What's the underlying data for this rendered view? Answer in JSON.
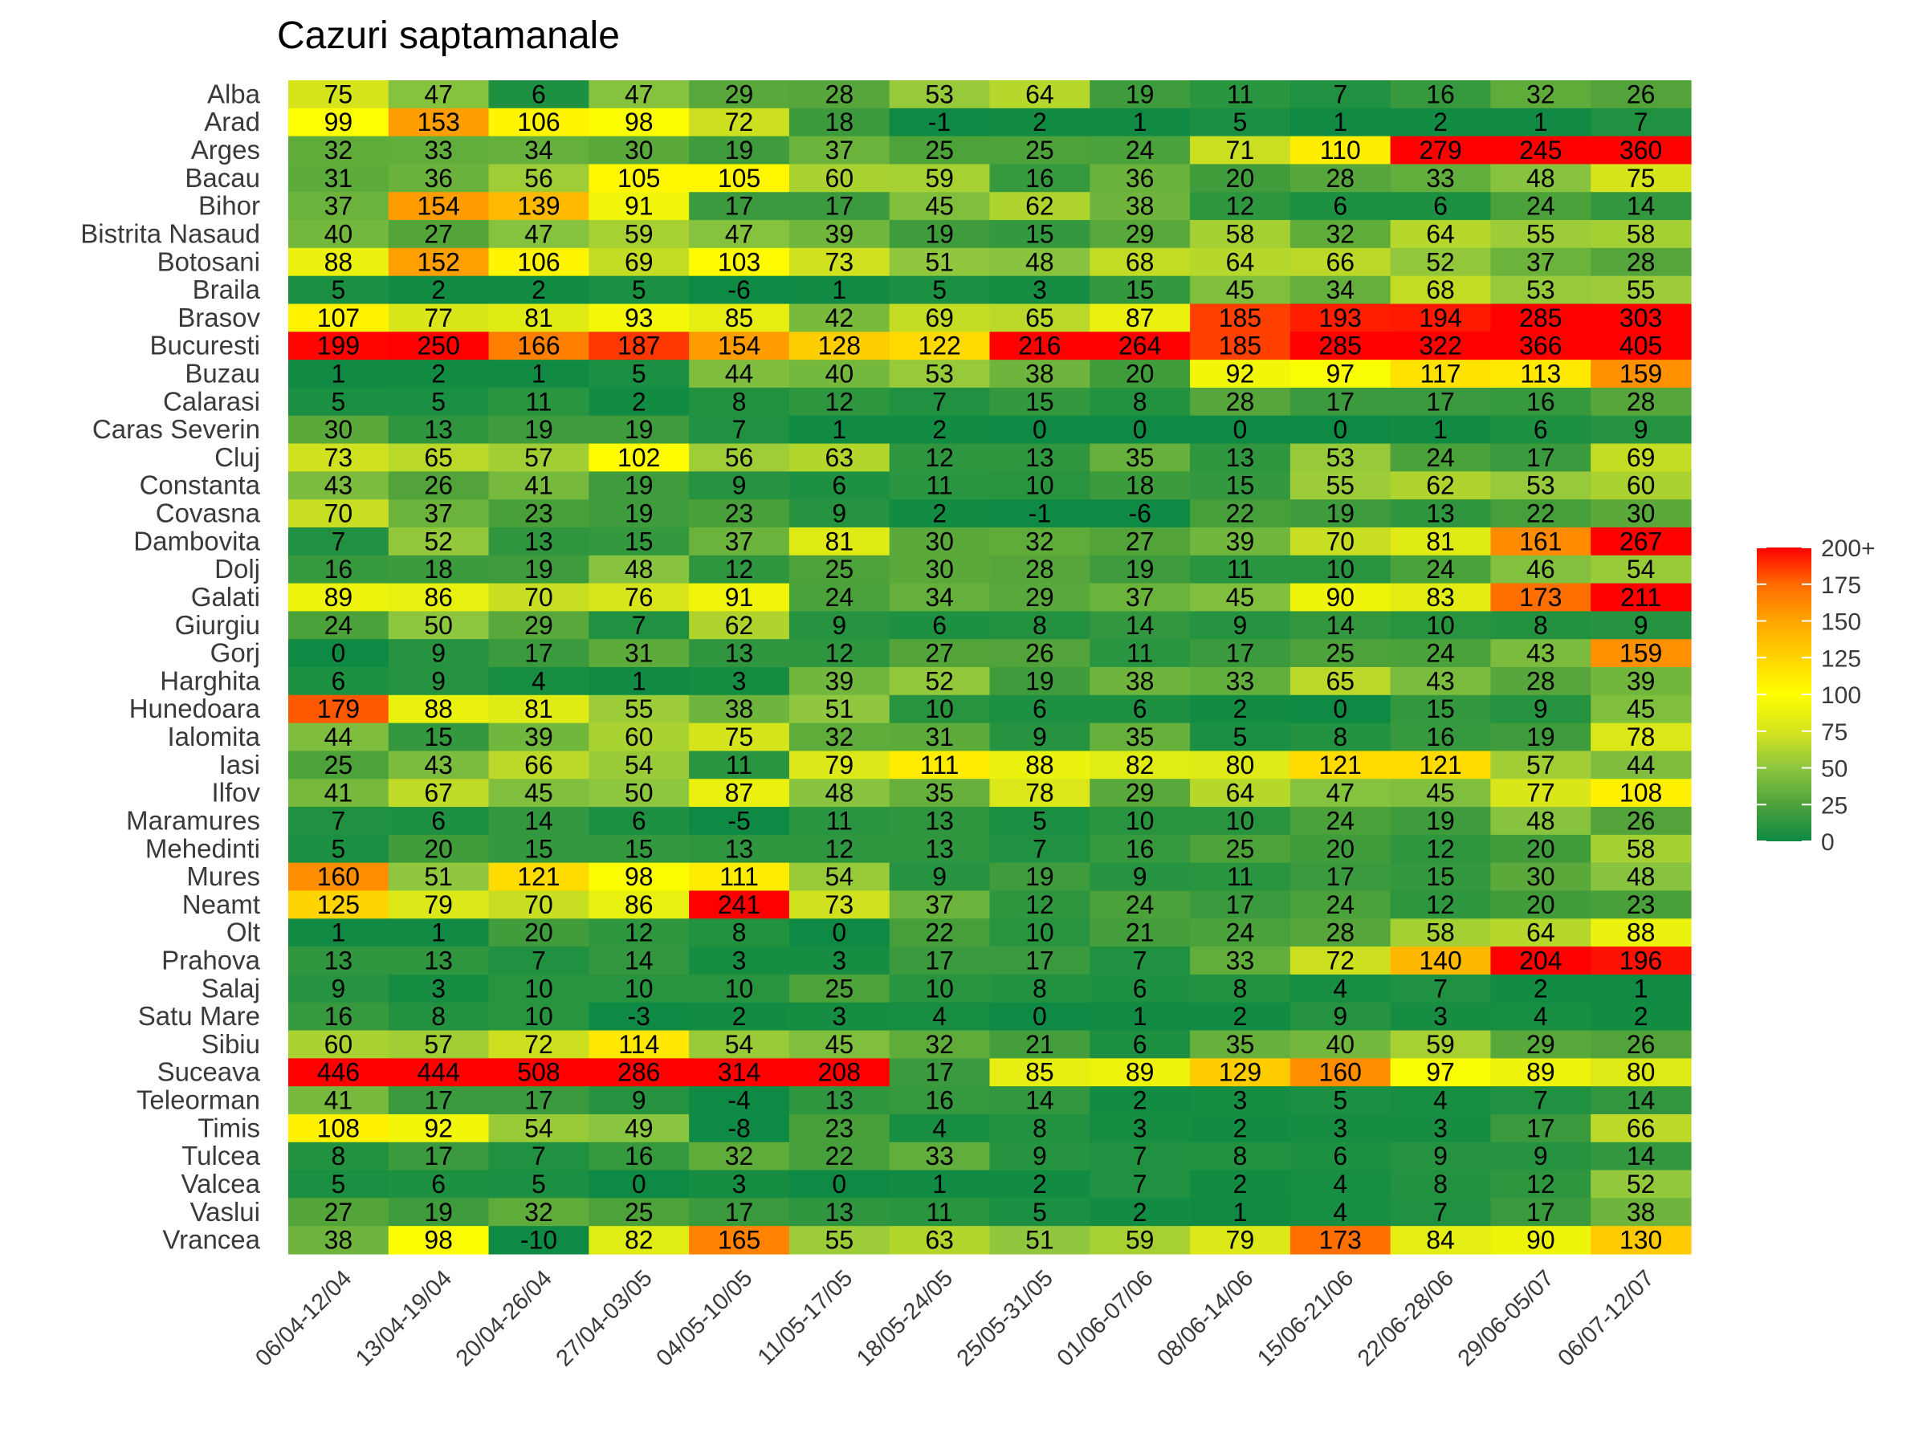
{
  "chart_data": {
    "type": "heatmap",
    "title": "Cazuri saptamanale",
    "xlabel": "",
    "ylabel": "",
    "columns": [
      "06/04-12/04",
      "13/04-19/04",
      "20/04-26/04",
      "27/04-03/05",
      "04/05-10/05",
      "11/05-17/05",
      "18/05-24/05",
      "25/05-31/05",
      "01/06-07/06",
      "08/06-14/06",
      "15/06-21/06",
      "22/06-28/06",
      "29/06-05/07",
      "06/07-12/07"
    ],
    "rows": [
      "Alba",
      "Arad",
      "Arges",
      "Bacau",
      "Bihor",
      "Bistrita Nasaud",
      "Botosani",
      "Braila",
      "Brasov",
      "Bucuresti",
      "Buzau",
      "Calarasi",
      "Caras Severin",
      "Cluj",
      "Constanta",
      "Covasna",
      "Dambovita",
      "Dolj",
      "Galati",
      "Giurgiu",
      "Gorj",
      "Harghita",
      "Hunedoara",
      "Ialomita",
      "Iasi",
      "Ilfov",
      "Maramures",
      "Mehedinti",
      "Mures",
      "Neamt",
      "Olt",
      "Prahova",
      "Salaj",
      "Satu Mare",
      "Sibiu",
      "Suceava",
      "Teleorman",
      "Timis",
      "Tulcea",
      "Valcea",
      "Vaslui",
      "Vrancea"
    ],
    "values": [
      [
        75,
        47,
        6,
        47,
        29,
        28,
        53,
        64,
        19,
        11,
        7,
        16,
        32,
        26
      ],
      [
        99,
        153,
        106,
        98,
        72,
        18,
        -1,
        2,
        1,
        5,
        1,
        2,
        1,
        7
      ],
      [
        32,
        33,
        34,
        30,
        19,
        37,
        25,
        25,
        24,
        71,
        110,
        279,
        245,
        360
      ],
      [
        31,
        36,
        56,
        105,
        105,
        60,
        59,
        16,
        36,
        20,
        28,
        33,
        48,
        75
      ],
      [
        37,
        154,
        139,
        91,
        17,
        17,
        45,
        62,
        38,
        12,
        6,
        6,
        24,
        14
      ],
      [
        40,
        27,
        47,
        59,
        47,
        39,
        19,
        15,
        29,
        58,
        32,
        64,
        55,
        58
      ],
      [
        88,
        152,
        106,
        69,
        103,
        73,
        51,
        48,
        68,
        64,
        66,
        52,
        37,
        28
      ],
      [
        5,
        2,
        2,
        5,
        -6,
        1,
        5,
        3,
        15,
        45,
        34,
        68,
        53,
        55
      ],
      [
        107,
        77,
        81,
        93,
        85,
        42,
        69,
        65,
        87,
        185,
        193,
        194,
        285,
        303
      ],
      [
        199,
        250,
        166,
        187,
        154,
        128,
        122,
        216,
        264,
        185,
        285,
        322,
        366,
        405
      ],
      [
        1,
        2,
        1,
        5,
        44,
        40,
        53,
        38,
        20,
        92,
        97,
        117,
        113,
        159
      ],
      [
        5,
        5,
        11,
        2,
        8,
        12,
        7,
        15,
        8,
        28,
        17,
        17,
        16,
        28
      ],
      [
        30,
        13,
        19,
        19,
        7,
        1,
        2,
        0,
        0,
        0,
        0,
        1,
        6,
        9
      ],
      [
        73,
        65,
        57,
        102,
        56,
        63,
        12,
        13,
        35,
        13,
        53,
        24,
        17,
        69
      ],
      [
        43,
        26,
        41,
        19,
        9,
        6,
        11,
        10,
        18,
        15,
        55,
        62,
        53,
        60
      ],
      [
        70,
        37,
        23,
        19,
        23,
        9,
        2,
        -1,
        -6,
        22,
        19,
        13,
        22,
        30
      ],
      [
        7,
        52,
        13,
        15,
        37,
        81,
        30,
        32,
        27,
        39,
        70,
        81,
        161,
        267
      ],
      [
        16,
        18,
        19,
        48,
        12,
        25,
        30,
        28,
        19,
        11,
        10,
        24,
        46,
        54
      ],
      [
        89,
        86,
        70,
        76,
        91,
        24,
        34,
        29,
        37,
        45,
        90,
        83,
        173,
        211
      ],
      [
        24,
        50,
        29,
        7,
        62,
        9,
        6,
        8,
        14,
        9,
        14,
        10,
        8,
        9
      ],
      [
        0,
        9,
        17,
        31,
        13,
        12,
        27,
        26,
        11,
        17,
        25,
        24,
        43,
        159
      ],
      [
        6,
        9,
        4,
        1,
        3,
        39,
        52,
        19,
        38,
        33,
        65,
        43,
        28,
        39
      ],
      [
        179,
        88,
        81,
        55,
        38,
        51,
        10,
        6,
        6,
        2,
        0,
        15,
        9,
        45
      ],
      [
        44,
        15,
        39,
        60,
        75,
        32,
        31,
        9,
        35,
        5,
        8,
        16,
        19,
        78
      ],
      [
        25,
        43,
        66,
        54,
        11,
        79,
        111,
        88,
        82,
        80,
        121,
        121,
        57,
        44
      ],
      [
        41,
        67,
        45,
        50,
        87,
        48,
        35,
        78,
        29,
        64,
        47,
        45,
        77,
        108
      ],
      [
        7,
        6,
        14,
        6,
        -5,
        11,
        13,
        5,
        10,
        10,
        24,
        19,
        48,
        26
      ],
      [
        5,
        20,
        15,
        15,
        13,
        12,
        13,
        7,
        16,
        25,
        20,
        12,
        20,
        58
      ],
      [
        160,
        51,
        121,
        98,
        111,
        54,
        9,
        19,
        9,
        11,
        17,
        15,
        30,
        48
      ],
      [
        125,
        79,
        70,
        86,
        241,
        73,
        37,
        12,
        24,
        17,
        24,
        12,
        20,
        23
      ],
      [
        1,
        1,
        20,
        12,
        8,
        0,
        22,
        10,
        21,
        24,
        28,
        58,
        64,
        88
      ],
      [
        13,
        13,
        7,
        14,
        3,
        3,
        17,
        17,
        7,
        33,
        72,
        140,
        204,
        196
      ],
      [
        9,
        3,
        10,
        10,
        10,
        25,
        10,
        8,
        6,
        8,
        4,
        7,
        2,
        1
      ],
      [
        16,
        8,
        10,
        -3,
        2,
        3,
        4,
        0,
        1,
        2,
        9,
        3,
        4,
        2
      ],
      [
        60,
        57,
        72,
        114,
        54,
        45,
        32,
        21,
        6,
        35,
        40,
        59,
        29,
        26
      ],
      [
        446,
        444,
        508,
        286,
        314,
        208,
        17,
        85,
        89,
        129,
        160,
        97,
        89,
        80
      ],
      [
        41,
        17,
        17,
        9,
        -4,
        13,
        16,
        14,
        2,
        3,
        5,
        4,
        7,
        14
      ],
      [
        108,
        92,
        54,
        49,
        -8,
        23,
        4,
        8,
        3,
        2,
        3,
        3,
        17,
        66
      ],
      [
        8,
        17,
        7,
        16,
        32,
        22,
        33,
        9,
        7,
        8,
        6,
        9,
        9,
        14
      ],
      [
        5,
        6,
        5,
        0,
        3,
        0,
        1,
        2,
        7,
        2,
        4,
        8,
        12,
        52
      ],
      [
        27,
        19,
        32,
        25,
        17,
        13,
        11,
        5,
        2,
        1,
        4,
        7,
        17,
        38
      ],
      [
        38,
        98,
        -10,
        82,
        165,
        55,
        63,
        51,
        59,
        79,
        173,
        84,
        90,
        130
      ]
    ],
    "color_scale": {
      "min": 0,
      "max": 200,
      "stops": [
        {
          "value": 0,
          "color": "#0e8a44"
        },
        {
          "value": 25,
          "color": "#4ea23a"
        },
        {
          "value": 50,
          "color": "#8dc63f"
        },
        {
          "value": 75,
          "color": "#d6e41c"
        },
        {
          "value": 100,
          "color": "#ffff00"
        },
        {
          "value": 125,
          "color": "#ffd400"
        },
        {
          "value": 150,
          "color": "#ffa500"
        },
        {
          "value": 175,
          "color": "#ff6a00"
        },
        {
          "value": 200,
          "color": "#ff0000"
        }
      ]
    },
    "legend": {
      "position": "right",
      "ticks": [
        "0",
        "25",
        "50",
        "75",
        "100",
        "125",
        "150",
        "175",
        "200+"
      ]
    }
  }
}
